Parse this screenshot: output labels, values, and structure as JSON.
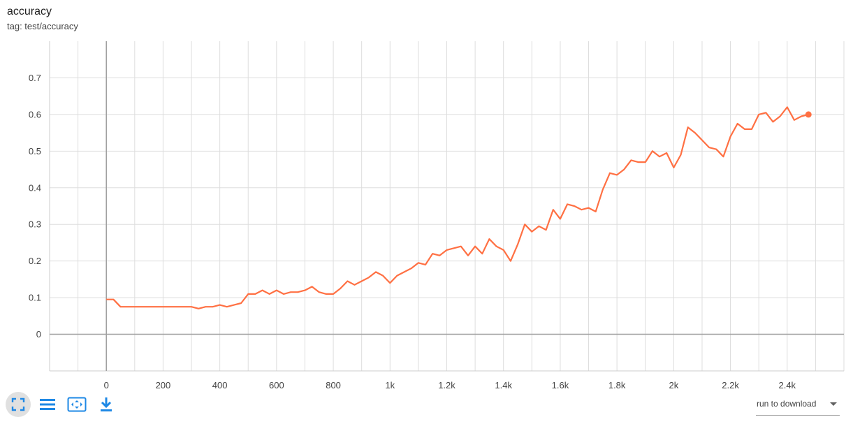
{
  "card": {
    "title": "accuracy",
    "subtitle": "tag: test/accuracy"
  },
  "toolbar": {
    "buttons": [
      {
        "icon": "fit-domain-icon",
        "active": true
      },
      {
        "icon": "list-icon",
        "active": false
      },
      {
        "icon": "expand-icon",
        "active": false
      },
      {
        "icon": "download-icon",
        "active": false
      }
    ],
    "accent_color": "#1e88e5"
  },
  "download": {
    "label": "run to download"
  },
  "chart_data": {
    "type": "line",
    "title": "",
    "xlabel": "",
    "ylabel": "",
    "xlim": [
      -200,
      2600
    ],
    "ylim": [
      -0.1,
      0.8
    ],
    "x_ticks": [
      0,
      200,
      400,
      600,
      800,
      1000,
      1200,
      1400,
      1600,
      1800,
      2000,
      2200,
      2400
    ],
    "x_tick_labels": [
      "0",
      "200",
      "400",
      "600",
      "800",
      "1k",
      "1.2k",
      "1.4k",
      "1.6k",
      "1.8k",
      "2k",
      "2.2k",
      "2.4k"
    ],
    "y_ticks": [
      0,
      0.1,
      0.2,
      0.3,
      0.4,
      0.5,
      0.6,
      0.7
    ],
    "y_tick_labels": [
      "0",
      "0.1",
      "0.2",
      "0.3",
      "0.4",
      "0.5",
      "0.6",
      "0.7"
    ],
    "grid": true,
    "series": [
      {
        "color": "#ff7043",
        "x": [
          0,
          25,
          50,
          75,
          100,
          125,
          150,
          175,
          200,
          225,
          250,
          275,
          300,
          325,
          350,
          375,
          400,
          425,
          450,
          475,
          500,
          525,
          550,
          575,
          600,
          625,
          650,
          675,
          700,
          725,
          750,
          775,
          800,
          825,
          850,
          875,
          900,
          925,
          950,
          975,
          1000,
          1025,
          1050,
          1075,
          1100,
          1125,
          1150,
          1175,
          1200,
          1225,
          1250,
          1275,
          1300,
          1325,
          1350,
          1375,
          1400,
          1425,
          1450,
          1475,
          1500,
          1525,
          1550,
          1575,
          1600,
          1625,
          1650,
          1675,
          1700,
          1725,
          1750,
          1775,
          1800,
          1825,
          1850,
          1875,
          1900,
          1925,
          1950,
          1975,
          2000,
          2025,
          2050,
          2075,
          2100,
          2125,
          2150,
          2175,
          2200,
          2225,
          2250,
          2275,
          2300,
          2325,
          2350,
          2375,
          2400,
          2425,
          2450,
          2475
        ],
        "y": [
          0.095,
          0.095,
          0.075,
          0.075,
          0.075,
          0.075,
          0.075,
          0.075,
          0.075,
          0.075,
          0.075,
          0.075,
          0.075,
          0.07,
          0.075,
          0.075,
          0.08,
          0.075,
          0.08,
          0.085,
          0.11,
          0.11,
          0.12,
          0.11,
          0.12,
          0.11,
          0.115,
          0.115,
          0.12,
          0.13,
          0.115,
          0.11,
          0.11,
          0.125,
          0.145,
          0.135,
          0.145,
          0.155,
          0.17,
          0.16,
          0.14,
          0.16,
          0.17,
          0.18,
          0.195,
          0.19,
          0.22,
          0.215,
          0.23,
          0.235,
          0.24,
          0.215,
          0.24,
          0.22,
          0.26,
          0.24,
          0.23,
          0.2,
          0.245,
          0.3,
          0.28,
          0.295,
          0.285,
          0.34,
          0.315,
          0.355,
          0.35,
          0.34,
          0.345,
          0.335,
          0.395,
          0.44,
          0.435,
          0.45,
          0.475,
          0.47,
          0.47,
          0.5,
          0.485,
          0.495,
          0.455,
          0.49,
          0.565,
          0.55,
          0.53,
          0.51,
          0.505,
          0.485,
          0.54,
          0.575,
          0.56,
          0.56,
          0.6,
          0.605,
          0.58,
          0.595,
          0.62,
          0.585,
          0.595,
          0.6
        ]
      }
    ]
  }
}
